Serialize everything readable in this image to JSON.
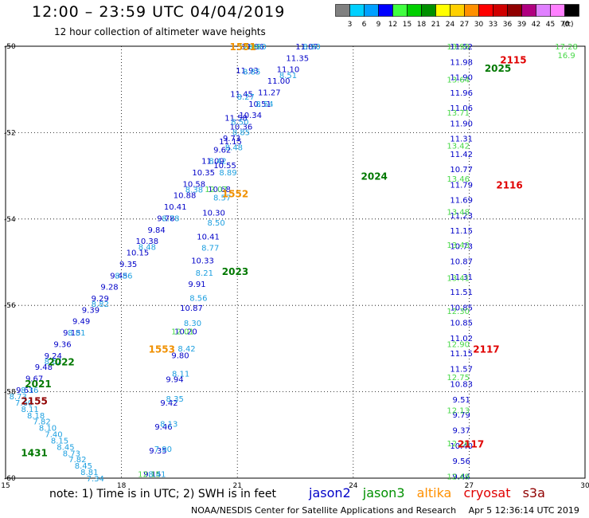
{
  "header": {
    "title": "12:00 – 23:59 UTC 04/04/2019",
    "subtitle": "12 hour collection of altimeter wave heights"
  },
  "legend": {
    "bins": [
      {
        "label": "",
        "color": "#808080"
      },
      {
        "label": "3",
        "color": "#00d0ff"
      },
      {
        "label": "6",
        "color": "#00a0ff"
      },
      {
        "label": "9",
        "color": "#0000ff"
      },
      {
        "label": "12",
        "color": "#40ff40"
      },
      {
        "label": "15",
        "color": "#00d000"
      },
      {
        "label": "18",
        "color": "#009000"
      },
      {
        "label": "21",
        "color": "#ffff00"
      },
      {
        "label": "24",
        "color": "#ffd000"
      },
      {
        "label": "27",
        "color": "#ff9000"
      },
      {
        "label": "30",
        "color": "#ff0000"
      },
      {
        "label": "33",
        "color": "#d00000"
      },
      {
        "label": "36",
        "color": "#900000"
      },
      {
        "label": "39",
        "color": "#b00080"
      },
      {
        "label": "42",
        "color": "#e080ff"
      },
      {
        "label": "45",
        "color": "#ff80ff"
      },
      {
        "label": "70",
        "color": "#000000"
      }
    ],
    "unit_label": "(ft)"
  },
  "footer": {
    "note": "note: 1) Time is in UTC; 2) SWH is in feet",
    "missions": [
      {
        "name": "jason2",
        "color": "#0000c8"
      },
      {
        "name": "jason3",
        "color": "#009000"
      },
      {
        "name": "altika",
        "color": "#ff9000"
      },
      {
        "name": "cryosat",
        "color": "#e00000"
      },
      {
        "name": "s3a",
        "color": "#900000"
      }
    ],
    "credit_org": "NOAA/NESDIS Center for Satellite Applications and Research",
    "credit_time": "Apr  5 12:36:14 UTC 2019"
  },
  "chart_data": {
    "type": "scatter",
    "title": "12:00 – 23:59 UTC 04/04/2019",
    "subtitle": "12 hour collection of altimeter wave heights",
    "xlim": [
      15,
      30
    ],
    "ylim": [
      -60,
      -50
    ],
    "x_ticks": [
      15,
      18,
      21,
      24,
      27,
      30
    ],
    "y_ticks": [
      -50,
      -52,
      -54,
      -56,
      -58,
      -60
    ],
    "grid": true,
    "colors": {
      "cyan": "#1ea0e0",
      "navy": "#0000c8",
      "lightgreen": "#48d848",
      "green": "#007800",
      "orange": "#f09000",
      "red": "#e00000",
      "darkred": "#900000"
    },
    "tracks": [
      {
        "start": [
          22.8,
          -50.0
        ],
        "end": [
          15.5,
          -57.95
        ],
        "color": "navy",
        "values": [
          "11.87",
          "11.35",
          "11.10",
          "11.00",
          "11.27",
          "10.51",
          "10.34",
          "10.36",
          "9.73",
          "9.62",
          "11.09",
          "10.35",
          "10.58",
          "10.88",
          "10.41",
          "9.78",
          "9.84",
          "10.38",
          "10.15",
          "9.35",
          "9.45",
          "9.28",
          "9.29",
          "9.39",
          "9.49",
          "9.15",
          "9.36",
          "9.24",
          "9.48",
          "9.67",
          "9.61"
        ]
      },
      {
        "start": [
          22.8,
          -50.0
        ],
        "end": [
          15.5,
          -57.95
        ],
        "color": "cyan",
        "values": [
          "8.90",
          "8.51",
          "8.54",
          "8.85",
          "8.42",
          "8.38",
          "8.78",
          "8.48",
          "8.86",
          "8.82",
          "8.81",
          "8.62",
          "8.36"
        ]
      },
      {
        "start": [
          21.4,
          -50.0
        ],
        "end": [
          18.8,
          -59.9
        ],
        "color": "navy",
        "values": [
          "11.86",
          "11.93",
          "11.45",
          "11.58",
          "11.15",
          "10.55",
          "10.68",
          "10.30",
          "10.41",
          "10.33",
          "9.91",
          "10.87",
          "10.20",
          "9.80",
          "9.94",
          "9.42",
          "9.46",
          "9.35",
          "9.15"
        ]
      },
      {
        "start": [
          21.4,
          -50.0
        ],
        "end": [
          18.8,
          -59.9
        ],
        "color": "lightgreen",
        "values": [
          "12.06",
          "12.07",
          "12.01",
          "12.15"
        ]
      },
      {
        "start": [
          21.4,
          -50.0
        ],
        "end": [
          18.8,
          -59.9
        ],
        "color": "cyan",
        "values": [
          "8.90",
          "8.85",
          "8.27",
          "8.50",
          "8.48",
          "8.89",
          "8.57",
          "8.50",
          "8.77",
          "8.21",
          "8.56",
          "8.30",
          "8.42",
          "8.11",
          "8.35",
          "8.13",
          "7.90",
          "8.41"
        ]
      },
      {
        "start": [
          26.8,
          -50.0
        ],
        "end": [
          26.8,
          -59.95
        ],
        "color": "navy",
        "values": [
          "11.52",
          "11.98",
          "11.90",
          "11.96",
          "11.06",
          "11.90",
          "11.31",
          "11.42",
          "10.77",
          "11.79",
          "11.69",
          "11.23",
          "11.15",
          "10.73",
          "10.87",
          "11.31",
          "11.51",
          "10.85",
          "10.85",
          "11.02",
          "11.15",
          "11.57",
          "10.83",
          "9.51",
          "9.79",
          "9.37",
          "10.40",
          "9.56",
          "9.44"
        ]
      },
      {
        "start": [
          26.8,
          -50.0
        ],
        "end": [
          26.8,
          -59.95
        ],
        "color": "lightgreen",
        "values": [
          "13.90",
          "13.64",
          "13.71",
          "13.42",
          "13.46",
          "13.48",
          "13.43",
          "13.41",
          "12.30",
          "12.90",
          "12.75",
          "12.13",
          "12.26",
          "12.49"
        ]
      },
      {
        "start": [
          29.6,
          -50.0
        ],
        "end": [
          29.6,
          -50.2
        ],
        "color": "lightgreen",
        "values": [
          "17.28",
          "16.9"
        ]
      },
      {
        "start": [
          15.2,
          -58.1
        ],
        "end": [
          17.2,
          -60.0
        ],
        "color": "cyan",
        "values": [
          "8.73",
          "7.60",
          "8.11",
          "8.18",
          "7.82",
          "8.10",
          "7.40",
          "8.15",
          "8.45",
          "8.73",
          "7.82",
          "8.45",
          "8.81",
          "7.34"
        ]
      }
    ],
    "annotations": [
      {
        "text": "1551",
        "x": 20.8,
        "y": -50.0,
        "color": "orange"
      },
      {
        "text": "1552",
        "x": 20.6,
        "y": -53.4,
        "color": "orange"
      },
      {
        "text": "1553",
        "x": 18.7,
        "y": -57.0,
        "color": "orange"
      },
      {
        "text": "2023",
        "x": 20.6,
        "y": -55.2,
        "color": "green"
      },
      {
        "text": "2024",
        "x": 24.2,
        "y": -53.0,
        "color": "green"
      },
      {
        "text": "2025",
        "x": 27.4,
        "y": -50.5,
        "color": "green"
      },
      {
        "text": "2022",
        "x": 16.1,
        "y": -57.3,
        "color": "green"
      },
      {
        "text": "2021",
        "x": 15.5,
        "y": -57.8,
        "color": "green"
      },
      {
        "text": "1431",
        "x": 15.4,
        "y": -59.4,
        "color": "green"
      },
      {
        "text": "2155",
        "x": 15.4,
        "y": -58.2,
        "color": "darkred"
      },
      {
        "text": "2115",
        "x": 27.8,
        "y": -50.3,
        "color": "red"
      },
      {
        "text": "2116",
        "x": 27.7,
        "y": -53.2,
        "color": "red"
      },
      {
        "text": "2117",
        "x": 27.1,
        "y": -57.0,
        "color": "red"
      },
      {
        "text": "2117",
        "x": 26.7,
        "y": -59.2,
        "color": "red"
      }
    ]
  }
}
